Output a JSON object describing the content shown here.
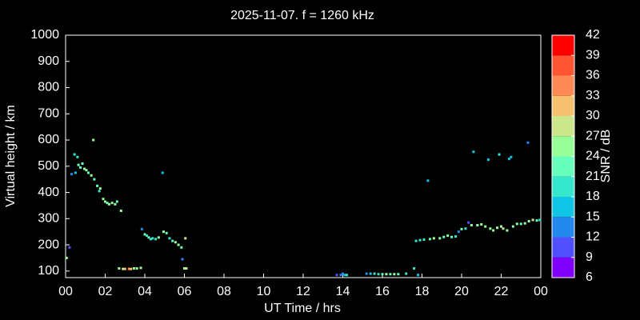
{
  "chart_data": {
    "type": "scatter",
    "title": "2025-11-07. f = 1260 kHz",
    "xlabel": "UT Time / hrs",
    "ylabel": "Virtual height / km",
    "colorbar_label": "SNR / dB",
    "xlim": [
      0,
      24
    ],
    "xticks": [
      {
        "value": 0,
        "label": "00"
      },
      {
        "value": 2,
        "label": "02"
      },
      {
        "value": 4,
        "label": "04"
      },
      {
        "value": 6,
        "label": "06"
      },
      {
        "value": 8,
        "label": "08"
      },
      10,
      12,
      14,
      16,
      18,
      20,
      22,
      {
        "value": 24,
        "label": "00"
      }
    ],
    "ylim": [
      75,
      1000
    ],
    "yticks": [
      100,
      200,
      300,
      400,
      500,
      600,
      700,
      800,
      900,
      1000
    ],
    "clim": [
      6,
      42
    ],
    "cticks": [
      6,
      9,
      12,
      15,
      18,
      21,
      24,
      27,
      30,
      33,
      36,
      39,
      42
    ],
    "colors": [
      "#8000ff",
      "#5050ff",
      "#2288ee",
      "#10c4e6",
      "#33e6cc",
      "#66ffbb",
      "#99ff99",
      "#cce68a",
      "#f5c070",
      "#ff8a55",
      "#ff5533",
      "#ff0000"
    ],
    "x": [
      0.05,
      0.2,
      0.3,
      0.45,
      0.5,
      0.6,
      0.65,
      0.75,
      0.85,
      0.95,
      1.05,
      1.15,
      1.3,
      1.4,
      1.45,
      1.6,
      1.7,
      1.75,
      1.9,
      2.0,
      2.1,
      2.2,
      2.35,
      2.5,
      2.6,
      2.8,
      2.7,
      2.9,
      3.0,
      3.2,
      3.3,
      3.45,
      3.6,
      3.8,
      3.85,
      4.0,
      4.1,
      4.2,
      4.3,
      4.4,
      4.55,
      4.7,
      4.9,
      4.95,
      5.1,
      5.25,
      5.4,
      5.55,
      5.7,
      5.85,
      5.9,
      6.0,
      6.1,
      6.05,
      13.7,
      13.9,
      14.0,
      14.1,
      14.2,
      15.2,
      15.4,
      15.6,
      15.8,
      16.0,
      16.2,
      16.4,
      16.6,
      16.8,
      17.2,
      17.6,
      17.8,
      17.7,
      17.9,
      18.1,
      18.3,
      18.4,
      18.6,
      18.9,
      19.1,
      19.3,
      19.5,
      19.7,
      19.85,
      20.0,
      20.2,
      20.35,
      20.5,
      20.6,
      20.8,
      21.0,
      21.2,
      21.35,
      21.45,
      21.6,
      21.8,
      21.9,
      22.0,
      22.1,
      22.3,
      22.4,
      22.5,
      22.6,
      22.8,
      23.0,
      23.2,
      23.35,
      23.4,
      23.6,
      23.8,
      23.95
    ],
    "y": [
      150,
      190,
      470,
      545,
      475,
      535,
      505,
      495,
      510,
      490,
      485,
      475,
      465,
      600,
      450,
      425,
      405,
      415,
      375,
      365,
      360,
      355,
      360,
      355,
      365,
      330,
      110,
      108,
      108,
      108,
      108,
      110,
      110,
      112,
      260,
      240,
      235,
      228,
      222,
      225,
      222,
      228,
      475,
      250,
      245,
      225,
      215,
      210,
      200,
      190,
      145,
      110,
      110,
      225,
      85,
      85,
      90,
      85,
      85,
      90,
      90,
      90,
      88,
      88,
      88,
      88,
      88,
      88,
      90,
      110,
      85,
      215,
      218,
      220,
      445,
      222,
      225,
      225,
      230,
      235,
      230,
      232,
      250,
      260,
      262,
      285,
      275,
      555,
      275,
      278,
      270,
      525,
      262,
      255,
      265,
      545,
      270,
      262,
      255,
      528,
      535,
      270,
      280,
      280,
      282,
      590,
      290,
      295,
      293,
      295
    ],
    "snr": [
      24,
      9,
      12,
      18,
      15,
      18,
      21,
      21,
      21,
      24,
      24,
      21,
      24,
      24,
      21,
      21,
      18,
      24,
      24,
      24,
      21,
      24,
      24,
      24,
      21,
      24,
      24,
      27,
      30,
      33,
      30,
      24,
      24,
      24,
      12,
      21,
      18,
      21,
      18,
      18,
      18,
      24,
      15,
      24,
      21,
      18,
      21,
      24,
      24,
      21,
      12,
      24,
      27,
      27,
      9,
      12,
      12,
      15,
      18,
      12,
      15,
      18,
      18,
      21,
      24,
      21,
      24,
      21,
      18,
      18,
      15,
      18,
      18,
      18,
      15,
      21,
      24,
      24,
      21,
      24,
      21,
      18,
      12,
      21,
      18,
      9,
      24,
      15,
      24,
      24,
      24,
      15,
      24,
      24,
      24,
      18,
      24,
      27,
      24,
      15,
      15,
      24,
      24,
      21,
      24,
      12,
      24,
      27,
      21,
      18
    ]
  }
}
